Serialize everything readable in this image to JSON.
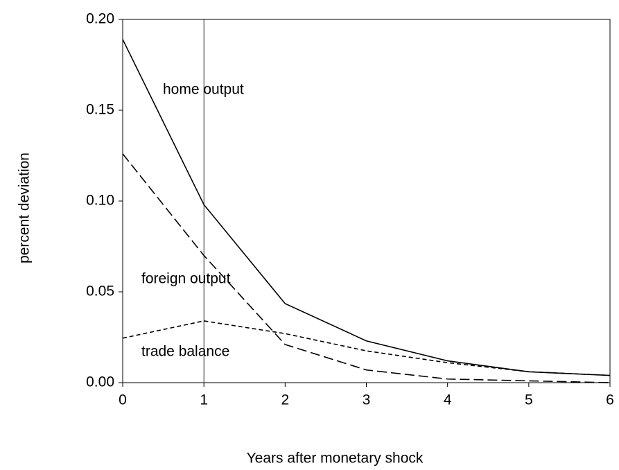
{
  "chart_data": {
    "type": "line",
    "x_label": "Years after monetary shock",
    "y_label": "percent deviation",
    "x": [
      0,
      1,
      2,
      3,
      4,
      5,
      6
    ],
    "series": [
      {
        "name": "home output",
        "color": "#000000",
        "line_style": "solid",
        "values": [
          0.189,
          0.098,
          0.0435,
          0.023,
          0.012,
          0.006,
          0.004
        ]
      },
      {
        "name": "foreign output",
        "color": "#000000",
        "line_style": "dashed",
        "values": [
          0.126,
          0.07,
          0.021,
          0.007,
          0.002,
          0.001,
          0
        ]
      },
      {
        "name": "trade balance",
        "color": "#000000",
        "line_style": "dotted",
        "values": [
          0.0245,
          0.034,
          0.027,
          0.0175,
          0.011,
          0.006,
          0.004
        ]
      }
    ],
    "xlim": [
      0,
      6
    ],
    "xticks": [
      0,
      1,
      2,
      3,
      4,
      5,
      6
    ],
    "ylim": [
      0,
      0.2
    ],
    "yticks": [
      {
        "value": 0,
        "label": "0.00"
      },
      0.05,
      {
        "value": 0.1,
        "label": "0.10"
      },
      0.15,
      {
        "value": 0.2,
        "label": "0.20"
      }
    ],
    "vline": 1,
    "grid": false
  }
}
